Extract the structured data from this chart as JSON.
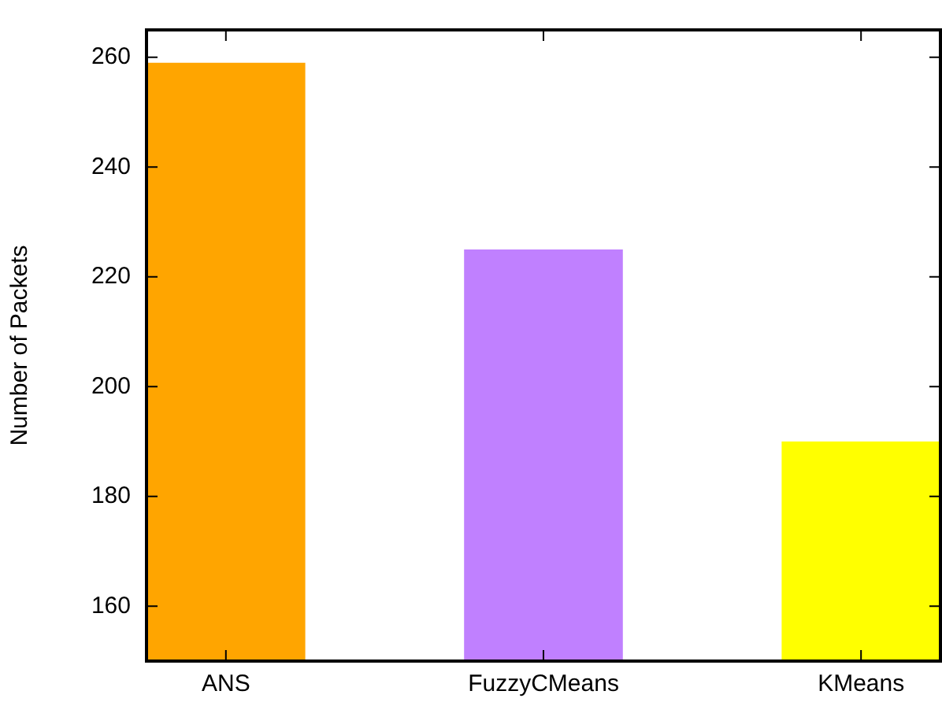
{
  "chart_data": {
    "type": "bar",
    "ylabel": "Number of Packets",
    "categories": [
      "ANS",
      "FuzzyCMeans",
      "KMeans"
    ],
    "values": [
      259,
      225,
      190
    ],
    "colors": [
      "#ffa500",
      "#c080ff",
      "#ffff00"
    ],
    "ylim": [
      150,
      265
    ],
    "yticks": [
      160,
      180,
      200,
      220,
      240,
      260
    ],
    "grid": false,
    "legend": false
  }
}
